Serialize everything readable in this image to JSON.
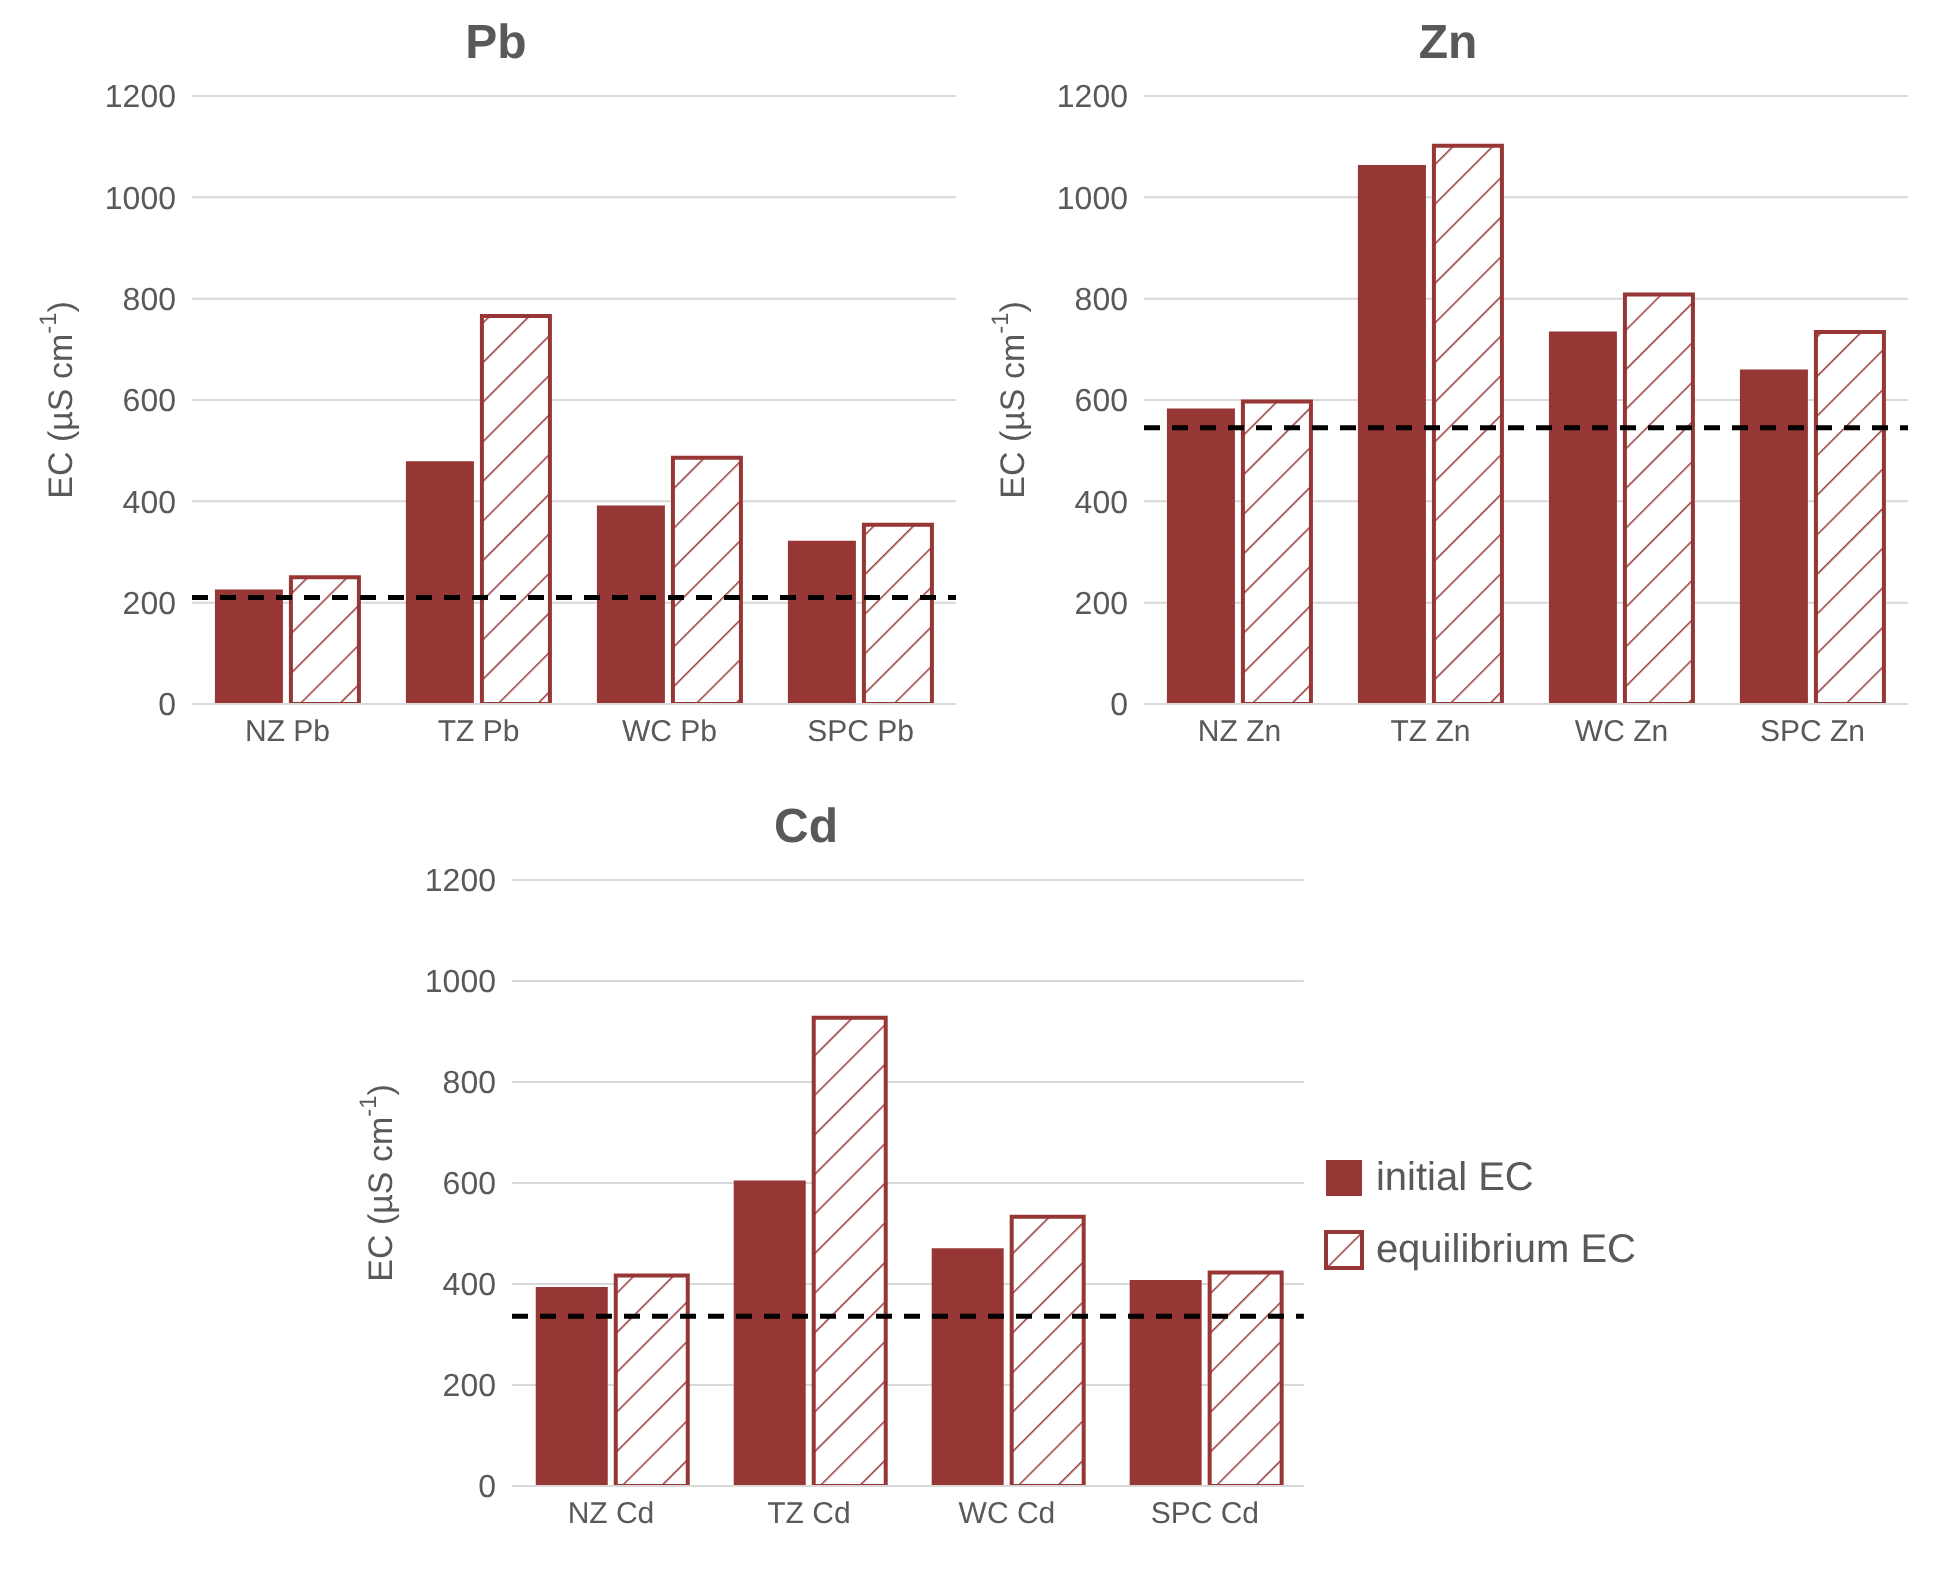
{
  "chart_data": [
    {
      "type": "bar",
      "title": "Pb",
      "ylabel": "EC (µS cm$^{-1}$)",
      "categories": [
        "NZ Pb",
        "TZ Pb",
        "WC Pb",
        "SPC Pb"
      ],
      "series": [
        {
          "color": "#963735",
          "values": [
            226,
            479,
            392,
            322
          ]
        },
        {
          "color": "#963735",
          "values": [
            250,
            766,
            486,
            354
          ]
        }
      ],
      "ylim": [
        0,
        1200
      ],
      "yticks": [
        0,
        200,
        400,
        600,
        800,
        1000,
        1200
      ],
      "grid": "y",
      "legend": false,
      "ref_lines": [
        {
          "axis": "y",
          "value": 210,
          "color": "#000000",
          "line_style": "dashed"
        }
      ]
    },
    {
      "type": "bar",
      "title": "Zn",
      "ylabel": "EC (µS cm$^{-1}$)",
      "categories": [
        "NZ Zn",
        "TZ Zn",
        "WC Zn",
        "SPC Zn"
      ],
      "series": [
        {
          "color": "#963735",
          "values": [
            583,
            1064,
            735,
            660
          ]
        },
        {
          "color": "#963735",
          "values": [
            597,
            1102,
            808,
            734
          ]
        }
      ],
      "ylim": [
        0,
        1200
      ],
      "yticks": [
        0,
        200,
        400,
        600,
        800,
        1000,
        1200
      ],
      "grid": "y",
      "legend": false,
      "ref_lines": [
        {
          "axis": "y",
          "value": 545,
          "color": "#000000",
          "line_style": "dashed"
        }
      ]
    },
    {
      "type": "bar",
      "title": "Cd",
      "ylabel": "EC (µS cm$^{-1}$)",
      "categories": [
        "NZ Cd",
        "TZ Cd",
        "WC Cd",
        "SPC Cd"
      ],
      "series": [
        {
          "name": "initial EC",
          "color": "#963735",
          "values": [
            394,
            605,
            471,
            408
          ]
        },
        {
          "name": "equilibrium EC",
          "color": "#963735",
          "values": [
            417,
            927,
            533,
            423
          ]
        }
      ],
      "ylim": [
        0,
        1200
      ],
      "yticks": [
        0,
        200,
        400,
        600,
        800,
        1000,
        1200
      ],
      "grid": "y",
      "legend": "right",
      "ref_lines": [
        {
          "axis": "y",
          "value": 336,
          "color": "#000000",
          "line_style": "dashed"
        }
      ]
    }
  ]
}
